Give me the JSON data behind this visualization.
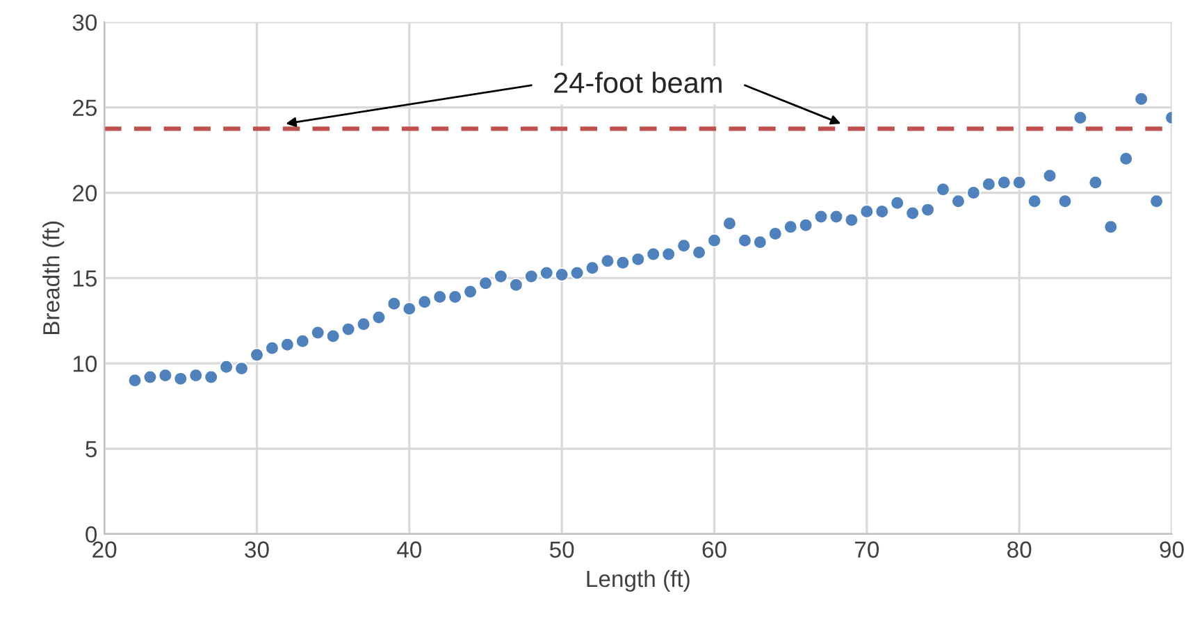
{
  "chart_data": {
    "type": "scatter",
    "xlabel": "Length (ft)",
    "ylabel": "Breadth (ft)",
    "x": [
      22,
      23,
      24,
      25,
      26,
      27,
      28,
      29,
      30,
      31,
      32,
      33,
      34,
      35,
      36,
      37,
      38,
      39,
      40,
      41,
      42,
      43,
      44,
      45,
      46,
      47,
      48,
      49,
      50,
      51,
      52,
      53,
      54,
      55,
      56,
      57,
      58,
      59,
      60,
      61,
      62,
      63,
      64,
      65,
      66,
      67,
      68,
      69,
      70,
      71,
      72,
      73,
      74,
      75,
      76,
      77,
      78,
      79,
      80,
      81,
      82,
      83,
      84,
      85,
      86,
      87,
      88,
      89,
      90
    ],
    "series": [
      {
        "color": "#4f81bd",
        "values": [
          9.0,
          9.2,
          9.3,
          9.1,
          9.3,
          9.2,
          9.8,
          9.7,
          10.5,
          10.9,
          11.1,
          11.3,
          11.8,
          11.6,
          12.0,
          12.3,
          12.7,
          13.5,
          13.2,
          13.6,
          13.9,
          13.9,
          14.2,
          14.7,
          15.1,
          14.6,
          15.1,
          15.3,
          15.2,
          15.3,
          15.6,
          16.0,
          15.9,
          16.1,
          16.4,
          16.4,
          16.9,
          16.5,
          17.2,
          18.2,
          17.2,
          17.1,
          17.6,
          18.0,
          18.1,
          18.6,
          18.6,
          18.4,
          18.9,
          18.9,
          19.4,
          18.8,
          19.0,
          20.2,
          19.5,
          20.0,
          20.5,
          20.6,
          20.6,
          19.5,
          21.0,
          19.5,
          24.4,
          20.6,
          18.0,
          22.0,
          25.5,
          19.5,
          24.4
        ]
      }
    ],
    "xlim": [
      20,
      90
    ],
    "xticks": [
      20,
      30,
      40,
      50,
      60,
      70,
      80,
      90
    ],
    "ylim": [
      0,
      30
    ],
    "yticks": [
      0,
      5,
      10,
      15,
      20,
      25,
      30
    ],
    "grid": true,
    "marker": "circle",
    "ref_lines": [
      {
        "axis": "y",
        "value": 23.75,
        "label": "24-foot beam",
        "color": "#c0504d",
        "line_style": "dashed"
      }
    ]
  }
}
